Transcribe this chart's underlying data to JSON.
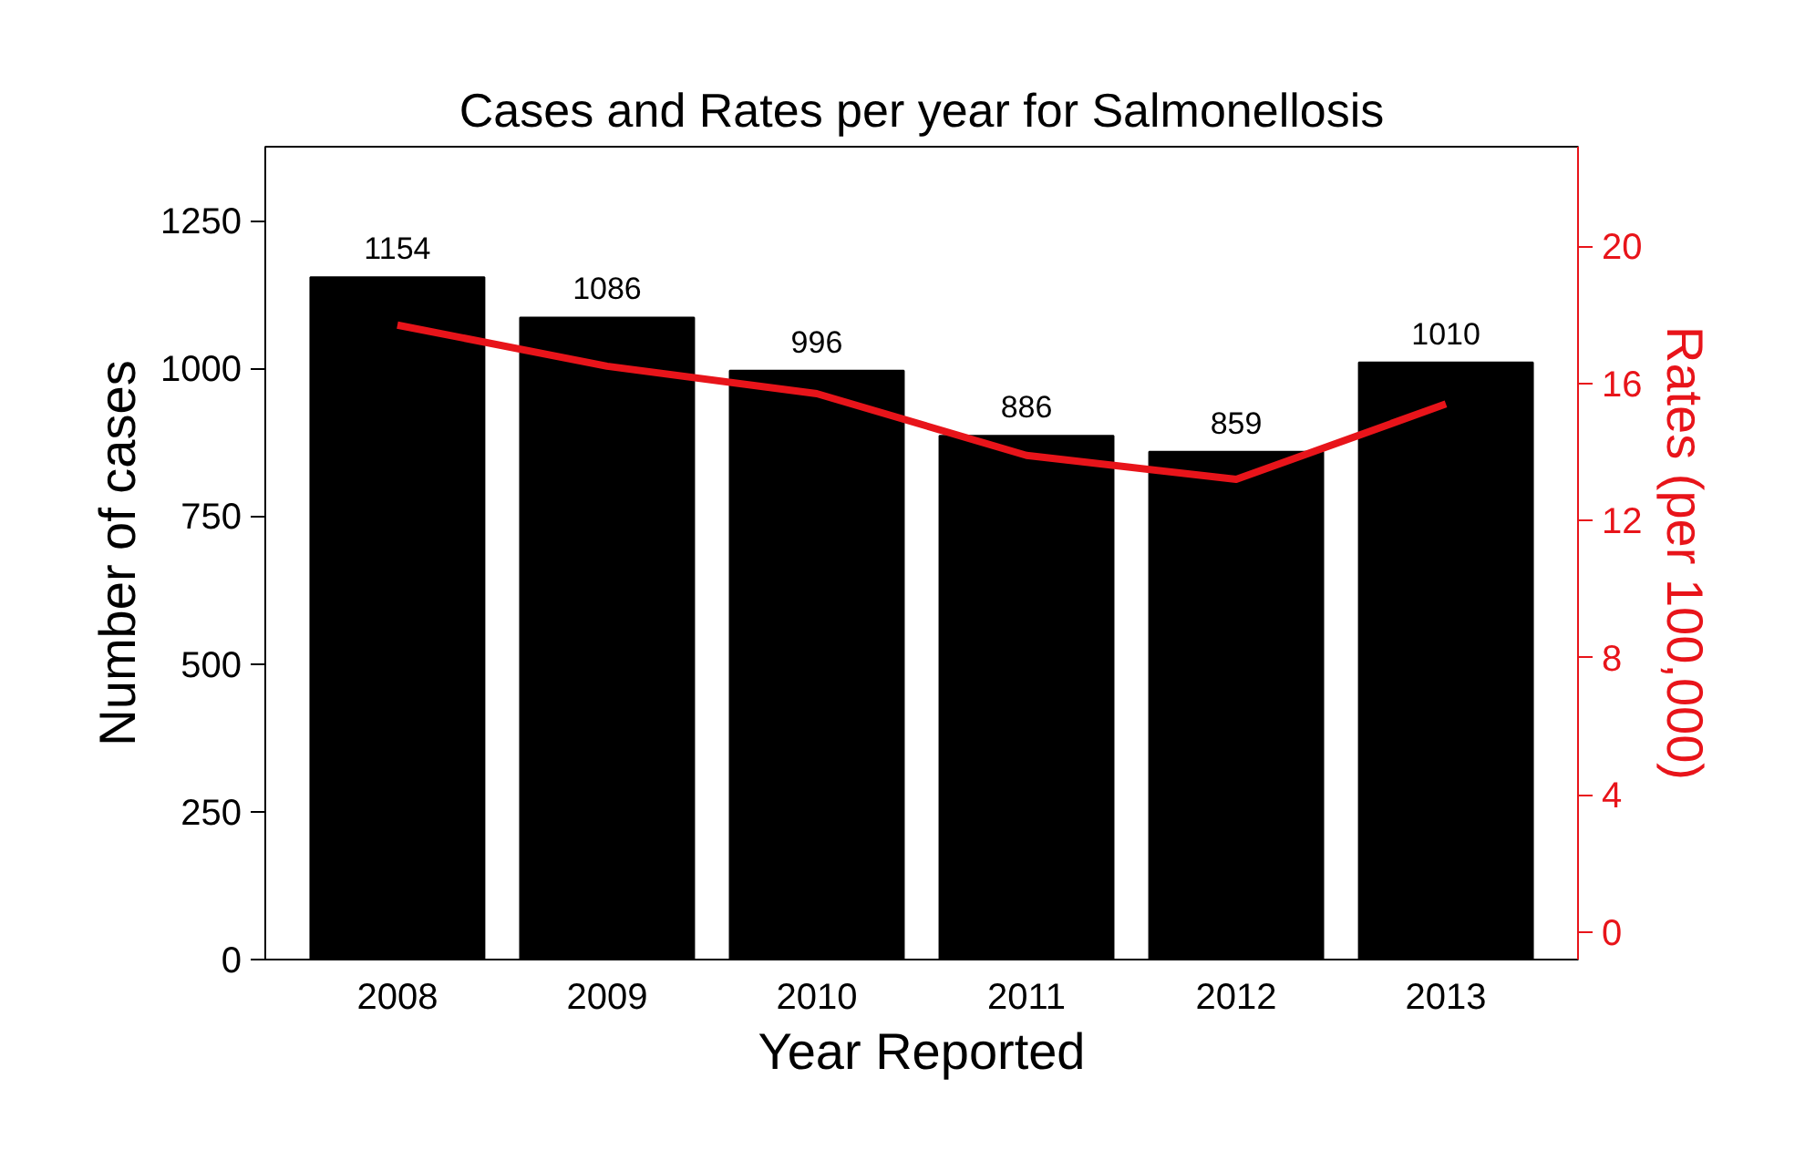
{
  "chart_data": {
    "type": "bar",
    "title": "Cases and Rates per year for Salmonellosis",
    "xlabel": "Year Reported",
    "ylabel": "Number of cases",
    "y2label": "Rates (per 100,000)",
    "categories": [
      "2008",
      "2009",
      "2010",
      "2011",
      "2012",
      "2013"
    ],
    "series": [
      {
        "color": "#000000",
        "values": [
          1154,
          1086,
          996,
          886,
          859,
          1010
        ],
        "data_labels": true
      },
      {
        "type": "line",
        "axis": "y2",
        "color": "#e8141a",
        "values": [
          17.7,
          16.5,
          15.7,
          13.9,
          13.2,
          15.4
        ]
      }
    ],
    "ylim": [
      0,
      1375
    ],
    "yticks": [
      0,
      250,
      500,
      750,
      1000,
      1250
    ],
    "y2lim": [
      -0.8,
      22.9
    ],
    "y2ticks": [
      0,
      4,
      8,
      12,
      16,
      20
    ],
    "grid": false
  }
}
